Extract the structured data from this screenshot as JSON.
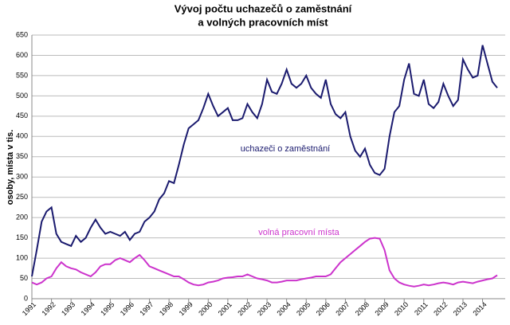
{
  "chart_data": {
    "type": "line",
    "title": "Vývoj počtu uchazečů o zaměstnání",
    "subtitle": "a volných pracovních míst",
    "y_label": "osoby, místa v tis.",
    "annotations": [
      "uchazeči o zaměstnání",
      "volná pracovní místa"
    ],
    "categories": [
      "1991",
      null,
      null,
      null,
      "1992",
      null,
      null,
      null,
      "1993",
      null,
      null,
      null,
      "1994",
      null,
      null,
      null,
      "1995",
      null,
      null,
      null,
      "1996",
      null,
      null,
      null,
      "1997",
      null,
      null,
      null,
      "1998",
      null,
      null,
      null,
      "1999",
      null,
      null,
      null,
      "2000",
      null,
      null,
      null,
      "2001",
      null,
      null,
      null,
      "2002",
      null,
      null,
      null,
      "2003",
      null,
      null,
      null,
      "2004",
      null,
      null,
      null,
      "2005",
      null,
      null,
      null,
      "2006",
      null,
      null,
      null,
      "2007",
      null,
      null,
      null,
      "2008",
      null,
      null,
      null,
      "2009",
      null,
      null,
      null,
      "2010",
      null,
      null,
      null,
      "2011",
      null,
      null,
      null,
      "2012",
      null,
      null,
      null,
      "2013",
      null,
      null,
      null,
      "2014",
      null,
      null,
      null
    ],
    "series": [
      {
        "name": "uchazeči o zaměstnání",
        "color": "#1a1a6e",
        "values": [
          55,
          120,
          190,
          215,
          225,
          160,
          140,
          135,
          130,
          155,
          140,
          150,
          175,
          195,
          175,
          160,
          165,
          160,
          155,
          165,
          145,
          160,
          165,
          190,
          200,
          215,
          245,
          260,
          290,
          285,
          330,
          380,
          420,
          430,
          440,
          470,
          505,
          475,
          450,
          460,
          470,
          440,
          440,
          445,
          480,
          460,
          445,
          480,
          540,
          510,
          505,
          530,
          565,
          530,
          520,
          530,
          550,
          520,
          505,
          495,
          540,
          480,
          455,
          445,
          460,
          400,
          365,
          350,
          370,
          330,
          310,
          305,
          320,
          400,
          460,
          475,
          540,
          580,
          505,
          500,
          540,
          480,
          470,
          485,
          530,
          500,
          475,
          490,
          590,
          565,
          545,
          550,
          625,
          580,
          535,
          520
        ]
      },
      {
        "name": "volná pracovní místa",
        "color": "#cc33cc",
        "values": [
          40,
          35,
          40,
          50,
          55,
          75,
          90,
          80,
          75,
          72,
          65,
          60,
          55,
          65,
          80,
          85,
          85,
          95,
          100,
          95,
          90,
          100,
          108,
          95,
          80,
          75,
          70,
          65,
          60,
          55,
          55,
          48,
          40,
          35,
          33,
          35,
          40,
          42,
          45,
          50,
          52,
          53,
          55,
          55,
          60,
          55,
          50,
          48,
          45,
          40,
          40,
          42,
          45,
          45,
          45,
          48,
          50,
          52,
          55,
          55,
          55,
          60,
          75,
          90,
          100,
          110,
          120,
          130,
          140,
          148,
          150,
          148,
          120,
          70,
          50,
          40,
          35,
          32,
          30,
          32,
          35,
          33,
          35,
          38,
          40,
          38,
          35,
          40,
          42,
          40,
          38,
          42,
          45,
          48,
          50,
          58
        ]
      }
    ],
    "ylim": [
      0,
      650
    ],
    "yticks": [
      0,
      50,
      100,
      150,
      200,
      250,
      300,
      350,
      400,
      450,
      500,
      550,
      600,
      650
    ],
    "grid": true
  }
}
